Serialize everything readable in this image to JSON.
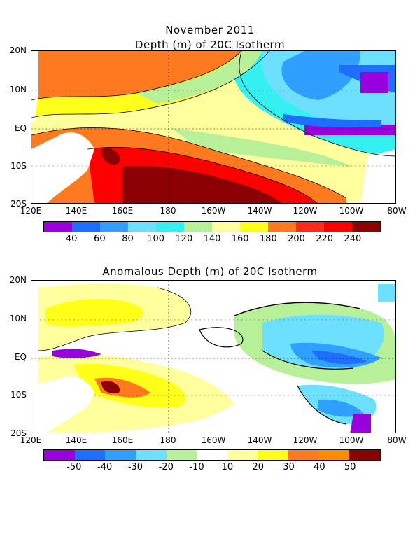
{
  "panel1": {
    "title_line1": "November 2011",
    "title_line2": "Depth (m) of 20C Isotherm",
    "colorbar": {
      "colors": [
        "#9900dd",
        "#1f6eff",
        "#2fa0ff",
        "#6ee0ff",
        "#35f0f0",
        "#b8f09a",
        "#ffff9e",
        "#ffff1a",
        "#ff7a1f",
        "#ff2a1a",
        "#ff0000",
        "#8b0000"
      ],
      "labels": [
        "40",
        "60",
        "80",
        "100",
        "120",
        "140",
        "160",
        "180",
        "200",
        "220",
        "240"
      ]
    }
  },
  "panel2": {
    "title": "Anomalous Depth (m) of 20C Isotherm",
    "colorbar": {
      "colors": [
        "#9900dd",
        "#1f6eff",
        "#2fa0ff",
        "#6ee0ff",
        "#b8f09a",
        "#ffffff",
        "#ffff9e",
        "#ffff1a",
        "#ff7a1f",
        "#ff8c00",
        "#8b0000"
      ],
      "labels": [
        "-50",
        "-40",
        "-30",
        "-20",
        "-10",
        "10",
        "20",
        "30",
        "40",
        "50"
      ]
    }
  },
  "axes": {
    "lat_labels": [
      "20N",
      "10N",
      "EQ",
      "10S",
      "20S"
    ],
    "lon_labels": [
      "120E",
      "140E",
      "160E",
      "180",
      "160W",
      "140W",
      "120W",
      "100W",
      "80W"
    ]
  },
  "map_data": {
    "region": "Equatorial Pacific",
    "lon_range": [
      "120E",
      "80W"
    ],
    "lat_range": [
      "20S",
      "20N"
    ],
    "fields": [
      {
        "panel": 1,
        "variable": "Depth of 20C Isotherm",
        "unit": "m",
        "pattern": "deep (200-240+) in western/southwestern Pacific, shoaling eastward to 40-60 near 10N-EQ east of 120W"
      },
      {
        "panel": 2,
        "variable": "Anomalous Depth of 20C Isotherm",
        "unit": "m",
        "pattern": "positive anomalies (10-50+) in west near 150E-10S, negative anomalies (-10 to -50) in central-eastern Pacific"
      }
    ]
  }
}
